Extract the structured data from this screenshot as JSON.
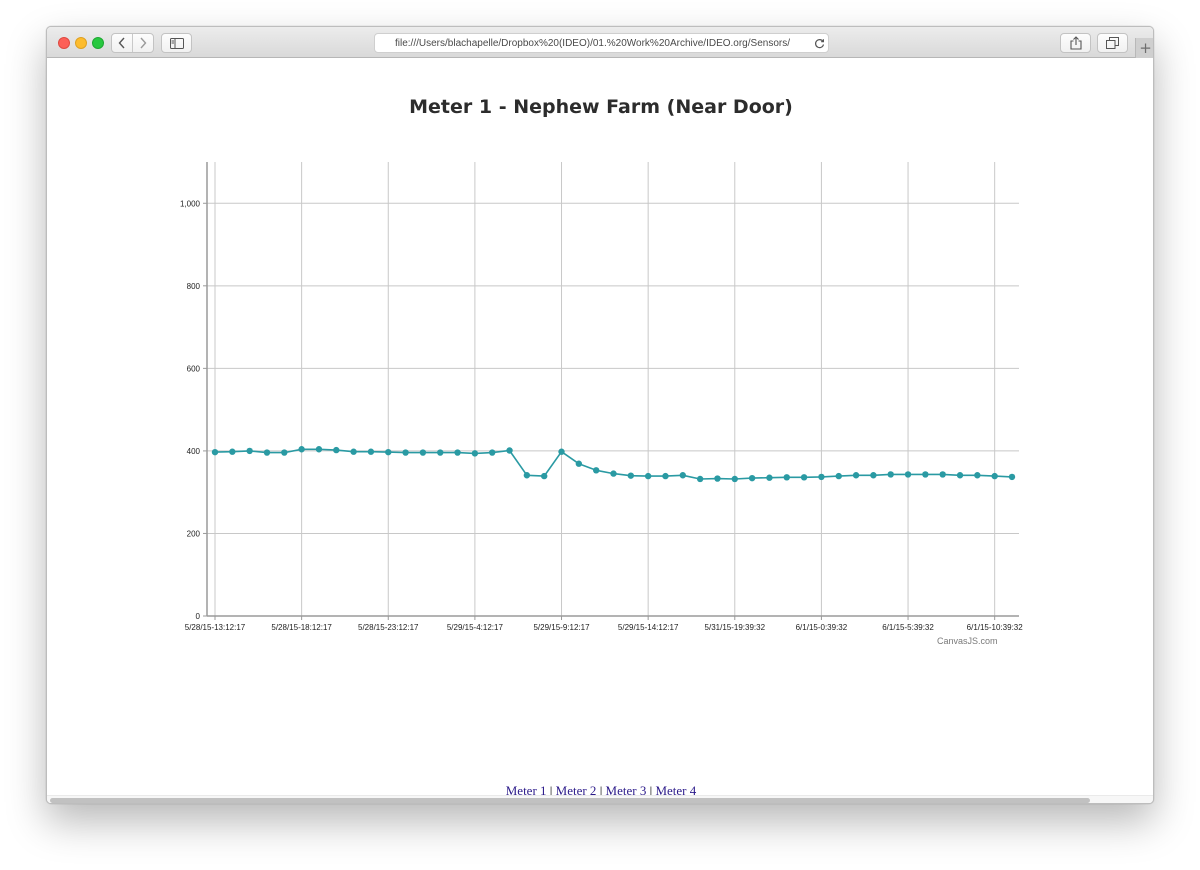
{
  "browser": {
    "url": "file:///Users/blachapelle/Dropbox%20(IDEO)/01.%20Work%20Archive/IDEO.org/Sensors/"
  },
  "chart_data": {
    "type": "line",
    "title": "Meter 1 - Nephew Farm (Near Door)",
    "xlabel": "",
    "ylabel": "",
    "ylim": [
      0,
      1100
    ],
    "y_ticks": [
      "0",
      "200",
      "400",
      "600",
      "800",
      "1,000"
    ],
    "x_tick_labels": [
      "5/28/15-13:12:17",
      "5/28/15-18:12:17",
      "5/28/15-23:12:17",
      "5/29/15-4:12:17",
      "5/29/15-9:12:17",
      "5/29/15-14:12:17",
      "5/31/15-19:39:32",
      "6/1/15-0:39:32",
      "6/1/15-5:39:32",
      "6/1/15-10:39:32"
    ],
    "grid": true,
    "line_color": "#2a9aa3",
    "values": [
      397,
      398,
      400,
      396,
      396,
      404,
      404,
      402,
      398,
      398,
      397,
      396,
      396,
      396,
      396,
      394,
      396,
      401,
      341,
      339,
      398,
      369,
      353,
      345,
      340,
      339,
      339,
      341,
      332,
      333,
      332,
      334,
      335,
      336,
      336,
      337,
      339,
      341,
      341,
      343,
      343,
      343,
      343,
      341,
      341,
      339,
      337
    ]
  },
  "credit": "CanvasJS.com",
  "nav_links": {
    "meter1": "Meter 1",
    "meter2": "Meter 2",
    "meter3": "Meter 3",
    "meter4": "Meter 4",
    "separator": "|"
  }
}
